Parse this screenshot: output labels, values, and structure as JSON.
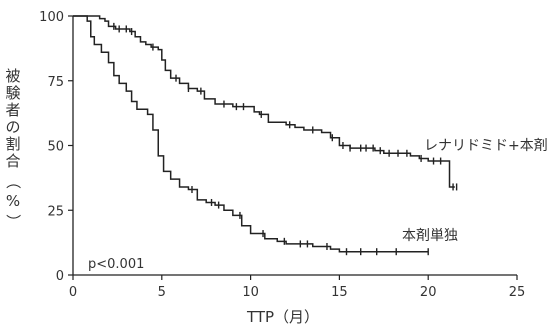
{
  "chart_data": {
    "type": "line",
    "title": "",
    "xlabel": "TTP（月）",
    "ylabel": "被験者の割合（%）",
    "xlim": [
      0,
      25
    ],
    "ylim": [
      0,
      100
    ],
    "x_ticks": [
      "0",
      "5",
      "10",
      "15",
      "20",
      "25"
    ],
    "y_ticks": [
      "0",
      "25",
      "50",
      "75",
      "100"
    ],
    "annotation": "p<0.001",
    "grid": false,
    "series": [
      {
        "name": "レナリドミド+本剤",
        "points": [
          [
            0,
            100
          ],
          [
            1.2,
            100
          ],
          [
            1.5,
            99
          ],
          [
            1.8,
            98
          ],
          [
            2,
            96
          ],
          [
            2.4,
            95
          ],
          [
            3.2,
            94
          ],
          [
            3.5,
            92
          ],
          [
            3.8,
            90
          ],
          [
            4.1,
            89
          ],
          [
            4.4,
            88
          ],
          [
            4.8,
            87
          ],
          [
            5.0,
            83
          ],
          [
            5.2,
            79
          ],
          [
            5.5,
            76
          ],
          [
            6,
            74
          ],
          [
            6.5,
            72
          ],
          [
            7.0,
            71
          ],
          [
            7.4,
            68
          ],
          [
            8,
            66
          ],
          [
            9,
            65
          ],
          [
            10.2,
            63
          ],
          [
            10.5,
            62
          ],
          [
            11,
            59
          ],
          [
            12,
            58
          ],
          [
            12.5,
            57
          ],
          [
            13,
            56
          ],
          [
            14,
            55
          ],
          [
            14.5,
            53
          ],
          [
            15,
            50
          ],
          [
            15.6,
            49
          ],
          [
            17,
            48
          ],
          [
            17.5,
            47
          ],
          [
            19,
            46
          ],
          [
            19.5,
            45
          ],
          [
            20,
            44
          ],
          [
            21,
            44
          ],
          [
            21.2,
            34
          ],
          [
            21.5,
            34
          ]
        ],
        "censor_x": [
          2.3,
          2.6,
          3.0,
          3.3,
          4.5,
          5.8,
          6.5,
          7.2,
          8.5,
          9.2,
          9.6,
          10.6,
          12.2,
          13.5,
          14.6,
          15.2,
          15.6,
          16.2,
          16.5,
          16.9,
          17.3,
          17.8,
          18.3,
          18.8,
          19.6,
          20.3,
          20.7,
          21.4,
          21.6
        ],
        "end_label": "レナリドミド+本剤"
      },
      {
        "name": "本剤単独",
        "points": [
          [
            0,
            100
          ],
          [
            0.8,
            98
          ],
          [
            1.0,
            92
          ],
          [
            1.2,
            89
          ],
          [
            1.6,
            86
          ],
          [
            2,
            82
          ],
          [
            2.3,
            77
          ],
          [
            2.6,
            74
          ],
          [
            3.0,
            71
          ],
          [
            3.3,
            67
          ],
          [
            3.6,
            64
          ],
          [
            4.2,
            62
          ],
          [
            4.5,
            56
          ],
          [
            4.8,
            46
          ],
          [
            5.1,
            40
          ],
          [
            5.5,
            37
          ],
          [
            6,
            34
          ],
          [
            6.5,
            33
          ],
          [
            7,
            29
          ],
          [
            7.5,
            28
          ],
          [
            8,
            27
          ],
          [
            8.5,
            25
          ],
          [
            9,
            23
          ],
          [
            9.5,
            19
          ],
          [
            10,
            16
          ],
          [
            10.8,
            14
          ],
          [
            11.5,
            13
          ],
          [
            12,
            12
          ],
          [
            13,
            12
          ],
          [
            13.5,
            11
          ],
          [
            14.5,
            10
          ],
          [
            15,
            9
          ],
          [
            17,
            9
          ],
          [
            20,
            9
          ]
        ],
        "censor_x": [
          6.7,
          7.8,
          8.2,
          9.4,
          10.7,
          11.9,
          12.8,
          13.2,
          14.3,
          15.4,
          16.2,
          17.1,
          18.2,
          20.0
        ],
        "end_label": "本剤単独"
      }
    ]
  }
}
